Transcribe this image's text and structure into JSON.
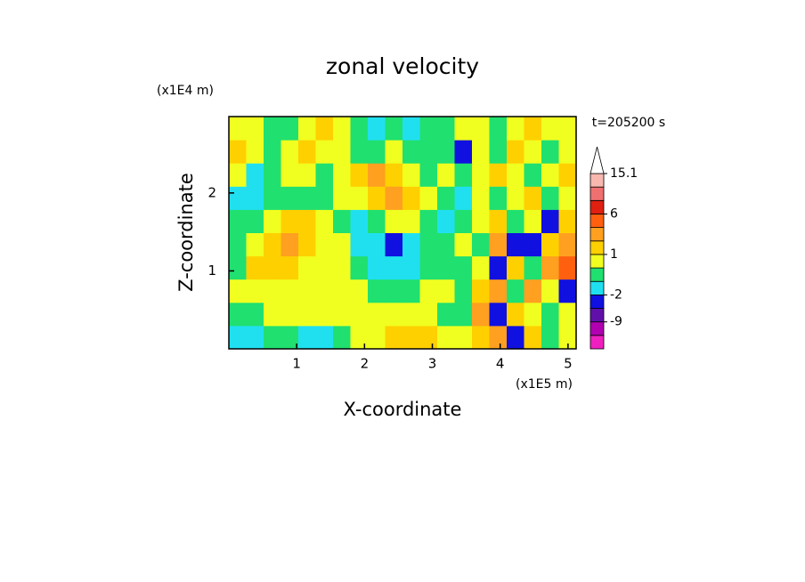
{
  "chart_data": {
    "type": "contour",
    "title": "zonal velocity",
    "x_label": "X-coordinate",
    "y_label": "Z-coordinate",
    "x_unit": "(x1E5 m)",
    "y_unit": "(x1E4 m)",
    "time_label": "t=205200 s",
    "xlim": [
      0,
      5.12
    ],
    "ylim": [
      0,
      2.98
    ],
    "xticks": [
      1,
      2,
      3,
      4,
      5
    ],
    "yticks": [
      1,
      2
    ],
    "x": [
      0.128,
      0.384,
      0.64,
      0.896,
      1.152,
      1.408,
      1.664,
      1.92,
      2.176,
      2.432,
      2.688,
      2.944,
      3.2,
      3.456,
      3.712,
      3.968,
      4.224,
      4.48,
      4.736,
      4.992
    ],
    "y": [
      0.149,
      0.447,
      0.745,
      1.043,
      1.341,
      1.639,
      1.937,
      2.235,
      2.533,
      2.831
    ],
    "z": [
      [
        -1.5,
        -1.5,
        -0.5,
        -0.5,
        -1.5,
        -1.5,
        -0.5,
        0.5,
        0.5,
        1.5,
        1.5,
        1.5,
        0.5,
        0.5,
        1.5,
        2.5,
        -4,
        1.5,
        -0.5,
        0.5
      ],
      [
        -0.5,
        -0.5,
        0.5,
        0.5,
        0.5,
        0.5,
        0.5,
        0.5,
        0.5,
        0.5,
        0.5,
        0.5,
        -0.5,
        -0.5,
        2.5,
        -4,
        1.5,
        0.5,
        -0.5,
        0.5
      ],
      [
        0.5,
        0.5,
        0.5,
        0.5,
        0.5,
        0.5,
        0.5,
        0.5,
        -0.5,
        -0.5,
        -0.5,
        0.5,
        0.5,
        -0.5,
        1.5,
        2.5,
        -0.5,
        2.5,
        0.5,
        -4
      ],
      [
        -0.5,
        1.5,
        1.5,
        1.5,
        0.5,
        0.5,
        0.5,
        -0.5,
        -1.5,
        -1.5,
        -1.5,
        -0.5,
        -0.5,
        -0.5,
        0.5,
        -4,
        1.5,
        -0.5,
        2.5,
        4
      ],
      [
        -0.5,
        0.5,
        1.5,
        2.5,
        1.5,
        0.5,
        0.5,
        -1.5,
        -1.5,
        -4,
        -1.5,
        -0.5,
        -0.5,
        0.5,
        -0.5,
        2.5,
        -4,
        -4,
        1.5,
        2.5
      ],
      [
        -0.5,
        -0.5,
        0.5,
        1.5,
        1.5,
        0.5,
        -0.5,
        -1.5,
        -0.5,
        0.5,
        0.5,
        -0.5,
        -1.5,
        -0.5,
        0.5,
        1.5,
        -0.5,
        0.5,
        -4,
        1.5
      ],
      [
        -1.5,
        -1.5,
        -0.5,
        -0.5,
        -0.5,
        -0.5,
        0.5,
        0.5,
        1.5,
        2.5,
        1.5,
        0.5,
        -0.5,
        -1.5,
        0.5,
        -0.5,
        0.5,
        1.5,
        -0.5,
        0.5
      ],
      [
        0.5,
        -1.5,
        -0.5,
        0.5,
        0.5,
        -0.5,
        0.5,
        1.5,
        2.5,
        1.5,
        0.5,
        -0.5,
        0.5,
        -0.5,
        0.5,
        1.5,
        0.5,
        -0.5,
        0.5,
        1.5
      ],
      [
        1.5,
        0.5,
        -0.5,
        0.5,
        1.5,
        0.5,
        0.5,
        -0.5,
        -0.5,
        0.5,
        -0.5,
        -0.5,
        -0.5,
        -4,
        0.5,
        -0.5,
        1.5,
        0.5,
        -0.5,
        0.5
      ],
      [
        0.5,
        0.5,
        -0.5,
        -0.5,
        0.5,
        1.5,
        0.5,
        -0.5,
        -1.5,
        -0.5,
        -1.5,
        -0.5,
        -0.5,
        0.5,
        0.5,
        -0.5,
        0.5,
        1.5,
        0.5,
        0.5
      ]
    ],
    "levels": [
      -15,
      -12,
      -9,
      -6,
      -2,
      -1,
      0,
      1,
      2,
      3,
      6,
      9,
      12,
      15.1
    ],
    "colors": [
      "#f020c0",
      "#b000b0",
      "#6010a8",
      "#1010e0",
      "#20e0f0",
      "#20e070",
      "#f0ff20",
      "#ffd000",
      "#ffa020",
      "#ff6010",
      "#e02010",
      "#f07070",
      "#f8b8b0"
    ],
    "colorbar_ticks": [
      -9,
      -2,
      1,
      6,
      15.1
    ]
  }
}
